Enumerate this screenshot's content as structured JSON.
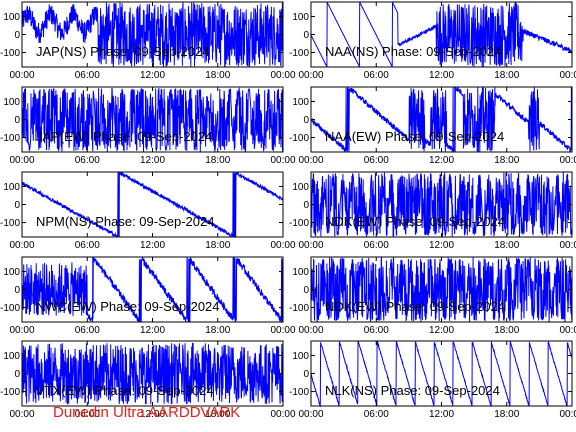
{
  "footer_label": "Dunedin Ultra AARDDVARK",
  "series_color": "#0000ff",
  "footer_color": "#e8201b",
  "y_ticks": [
    "100",
    "0",
    "-100"
  ],
  "x_ticks": [
    "00:00",
    "06:00",
    "12:00",
    "18:00",
    "00:00"
  ],
  "chart_data": [
    {
      "type": "line",
      "title": "JAP(NS) Phase: 09-Sep-2024",
      "ylim": [
        -180,
        180
      ],
      "xlim": [
        0,
        24
      ],
      "yticks": [
        -100,
        0,
        100
      ],
      "xticks": [
        0,
        6,
        12,
        18,
        24
      ]
    },
    {
      "type": "line",
      "title": "NAA(NS) Phase: 09-Sep-2024",
      "ylim": [
        -180,
        180
      ],
      "xlim": [
        0,
        24
      ],
      "yticks": [
        -100,
        0,
        100
      ],
      "xticks": [
        0,
        6,
        12,
        18,
        24
      ]
    },
    {
      "type": "line",
      "title": "JAP(EW) Phase: 09-Sep-2024",
      "ylim": [
        -180,
        180
      ],
      "xlim": [
        0,
        24
      ],
      "yticks": [
        -100,
        0,
        100
      ],
      "xticks": [
        0,
        6,
        12,
        18,
        24
      ]
    },
    {
      "type": "line",
      "title": "NAA(EW) Phase: 09-Sep-2024",
      "ylim": [
        -180,
        180
      ],
      "xlim": [
        0,
        24
      ],
      "yticks": [
        -100,
        0,
        100
      ],
      "xticks": [
        0,
        6,
        12,
        18,
        24
      ]
    },
    {
      "type": "line",
      "title": "NPM(NS) Phase: 09-Sep-2024",
      "ylim": [
        -180,
        180
      ],
      "xlim": [
        0,
        24
      ],
      "yticks": [
        -100,
        0,
        100
      ],
      "xticks": [
        0,
        6,
        12,
        18,
        24
      ]
    },
    {
      "type": "line",
      "title": "NDK(EW) Phase: 09-Sep-2024",
      "ylim": [
        -180,
        180
      ],
      "xlim": [
        0,
        24
      ],
      "yticks": [
        -100,
        0,
        100
      ],
      "xticks": [
        0,
        6,
        12,
        18,
        24
      ]
    },
    {
      "type": "line",
      "title": "NWC(EW) Phase: 09-Sep-2024",
      "ylim": [
        -180,
        180
      ],
      "xlim": [
        0,
        24
      ],
      "yticks": [
        -100,
        0,
        100
      ],
      "xticks": [
        0,
        6,
        12,
        18,
        24
      ]
    },
    {
      "type": "line",
      "title": "NDK(EW) Phase: 09-Sep-2024",
      "ylim": [
        -180,
        180
      ],
      "xlim": [
        0,
        24
      ],
      "yticks": [
        -100,
        0,
        100
      ],
      "xticks": [
        0,
        6,
        12,
        18,
        24
      ]
    },
    {
      "type": "line",
      "title": "VTX(EW) Phase: 09-Sep-2024",
      "ylim": [
        -180,
        180
      ],
      "xlim": [
        0,
        24
      ],
      "yticks": [
        -100,
        0,
        100
      ],
      "xticks": [
        0,
        6,
        12,
        18,
        24
      ]
    },
    {
      "type": "line",
      "title": "NLK(NS) Phase: 09-Sep-2024",
      "ylim": [
        -180,
        180
      ],
      "xlim": [
        0,
        24
      ],
      "yticks": [
        -100,
        0,
        100
      ],
      "xticks": [
        0,
        6,
        12,
        18,
        24
      ]
    }
  ]
}
